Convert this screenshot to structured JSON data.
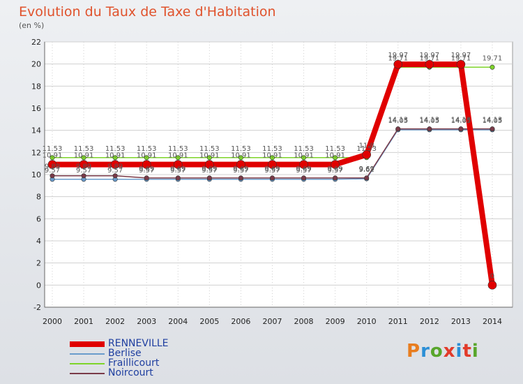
{
  "header": {
    "title": "Evolution du Taux de Taxe d'Habitation",
    "unit": "(en %)"
  },
  "logo": {
    "text": "Proxiti",
    "colors": [
      "#e87d1f",
      "#2b8fd6",
      "#58a62b",
      "#e23b2a",
      "#2b8fd6",
      "#e23b2a",
      "#58a62b"
    ]
  },
  "chart_data": {
    "type": "line",
    "title": "Evolution du Taux de Taxe d'Habitation",
    "ylabel": "(en %)",
    "xlabel": "",
    "x": [
      "2000",
      "2001",
      "2002",
      "2003",
      "2004",
      "2005",
      "2006",
      "2007",
      "2008",
      "2009",
      "2010",
      "2011",
      "2012",
      "2013",
      "2014"
    ],
    "ylim": [
      -2,
      22
    ],
    "yticks": [
      -2,
      0,
      2,
      4,
      6,
      8,
      10,
      12,
      14,
      16,
      18,
      20,
      22
    ],
    "grid": true,
    "legend": "bottom-left",
    "series": [
      {
        "name": "RENNEVILLE",
        "color": "#e00000",
        "width": 8,
        "values": [
          10.91,
          10.91,
          10.91,
          10.91,
          10.91,
          10.91,
          10.91,
          10.91,
          10.91,
          10.91,
          11.8,
          19.97,
          19.97,
          19.97,
          0
        ],
        "labels": [
          "10.91",
          "10.91",
          "10.91",
          "10.91",
          "10.91",
          "10.91",
          "10.91",
          "10.91",
          "10.91",
          "10.91",
          "11.8",
          "19.97",
          "19.97",
          "19.97",
          "0"
        ]
      },
      {
        "name": "Berlise",
        "color": "#6a9ccc",
        "width": 1.5,
        "values": [
          9.57,
          9.57,
          9.57,
          9.57,
          9.57,
          9.57,
          9.57,
          9.57,
          9.57,
          9.57,
          9.62,
          14.05,
          14.05,
          14.05,
          14.05
        ],
        "labels": [
          "9.57",
          "9.57",
          "9.57",
          "9.57",
          "9.57",
          "9.57",
          "9.57",
          "9.57",
          "9.57",
          "9.57",
          "9.62",
          "14.05",
          "14.05",
          "14.05",
          "14.05"
        ]
      },
      {
        "name": "Fraillicourt",
        "color": "#7ed42a",
        "width": 1.5,
        "values": [
          11.53,
          11.53,
          11.53,
          11.53,
          11.53,
          11.53,
          11.53,
          11.53,
          11.53,
          11.53,
          11.53,
          19.71,
          19.71,
          19.71,
          19.71
        ],
        "labels": [
          "11.53",
          "11.53",
          "11.53",
          "11.53",
          "11.53",
          "11.53",
          "11.53",
          "11.53",
          "11.53",
          "11.53",
          "11.53",
          "19.71",
          "19.71",
          "19.71",
          "19.71"
        ]
      },
      {
        "name": "Noircourt",
        "color": "#7a3a48",
        "width": 1.5,
        "values": [
          9.89,
          9.89,
          9.89,
          9.69,
          9.69,
          9.69,
          9.69,
          9.69,
          9.69,
          9.69,
          9.69,
          14.13,
          14.13,
          14.13,
          14.13
        ],
        "labels": [
          "9.89",
          "9.89",
          "9.89",
          "9.69",
          "9.69",
          "9.69",
          "9.69",
          "9.69",
          "9.69",
          "9.69",
          "9.69",
          "14.13",
          "14.13",
          "14.13",
          "14.13"
        ]
      }
    ]
  }
}
